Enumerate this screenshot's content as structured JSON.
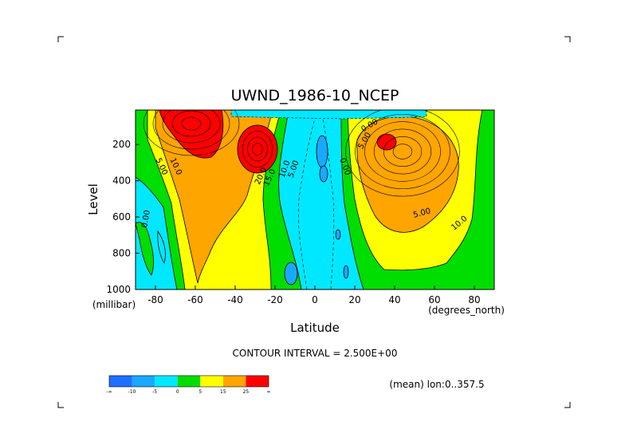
{
  "chart_data": {
    "type": "contour",
    "title": "UWND_1986-10_NCEP",
    "xlabel": "Latitude",
    "ylabel": "Level",
    "x_units": "(degrees_north)",
    "y_units": "(millibar)",
    "xlim": [
      -90,
      90
    ],
    "ylim": [
      1000,
      10
    ],
    "y_inverted": true,
    "xticks": [
      -80,
      -60,
      -40,
      -20,
      0,
      20,
      40,
      60,
      80
    ],
    "xtick_labels": [
      "-80",
      "-60",
      "-40",
      "-20",
      "0",
      "20",
      "40",
      "60",
      "80"
    ],
    "yticks": [
      200,
      400,
      600,
      800,
      1000
    ],
    "ytick_labels": [
      "200",
      "400",
      "600",
      "800",
      "1000"
    ],
    "contour_interval_text": "CONTOUR INTERVAL = 2.500E+00",
    "contour_interval": 2.5,
    "annotation": "(mean) lon:0..357.5",
    "contour_labels": [
      "0.00",
      "5.00",
      "10.0",
      "20.0",
      "15.0",
      "10.0",
      "5.00",
      "0.00",
      "0.00",
      "5.00",
      "10.0",
      "5.00"
    ],
    "jets": [
      {
        "name": "",
        "lat": -60,
        "level": 150,
        "max": 30
      },
      {
        "name": "",
        "lat": -28,
        "level": 200,
        "max": 27.5
      },
      {
        "name": "",
        "lat": 37,
        "level": 200,
        "max": 27.5
      }
    ],
    "colorbar": {
      "levels": [
        "-∞",
        "-10",
        "-5",
        "0",
        "5",
        "15",
        "25",
        "∞"
      ],
      "colors": [
        "#1f6fff",
        "#1aa8ff",
        "#00e8ff",
        "#00dd00",
        "#ffff00",
        "#ffa500",
        "#ff0000"
      ]
    }
  }
}
